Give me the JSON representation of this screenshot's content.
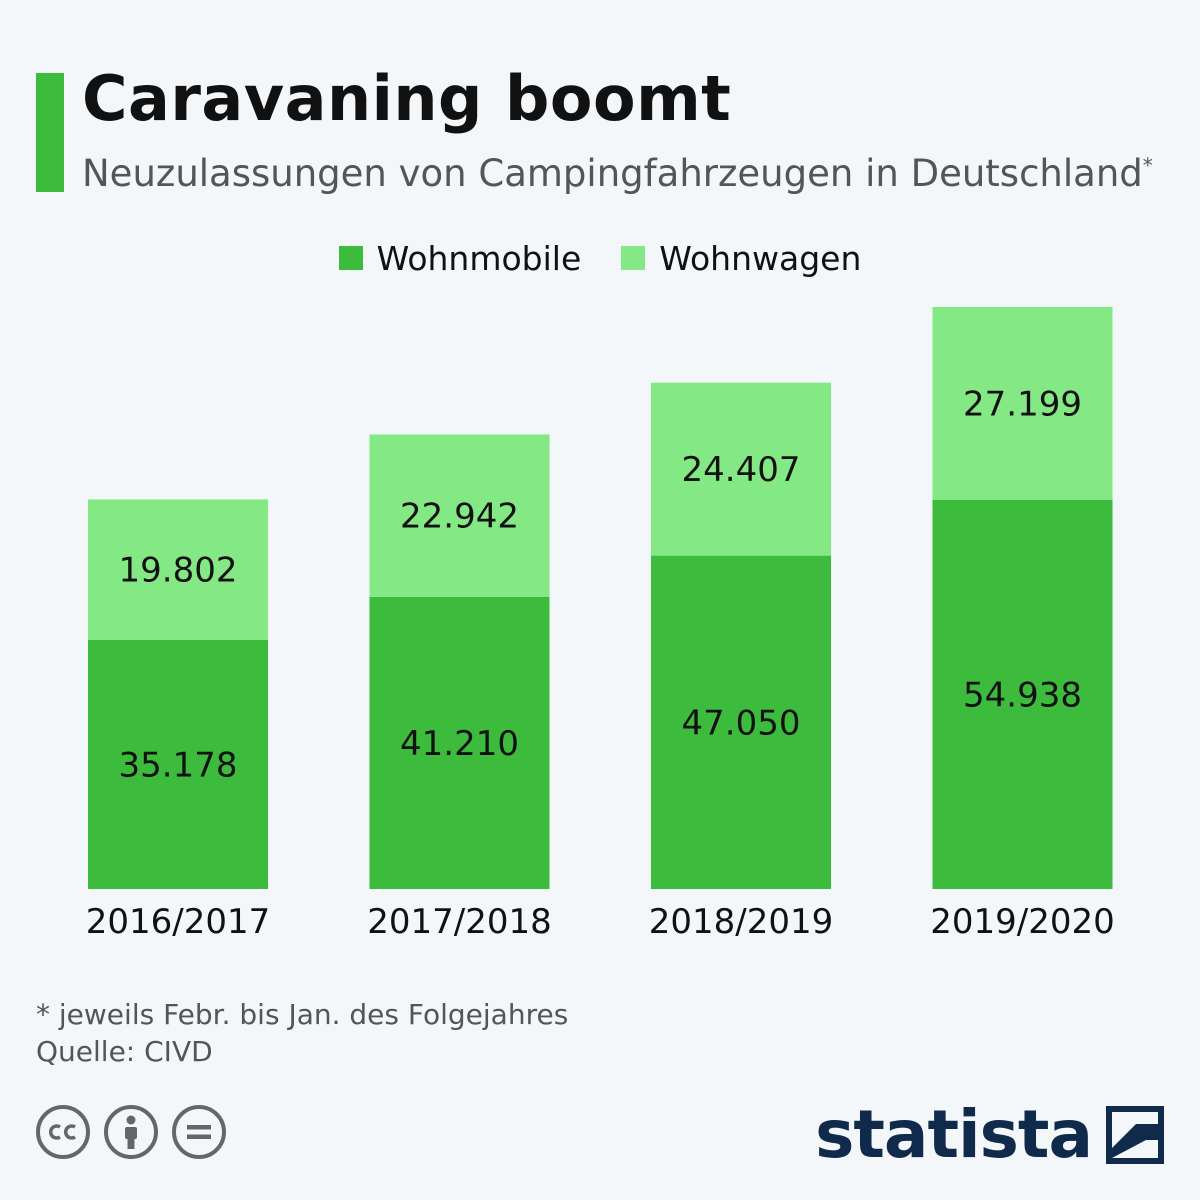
{
  "header": {
    "title": "Caravaning boomt",
    "subtitle": "Neuzulassungen von Campingfahrzeugen in Deutschland",
    "subtitle_marker": "*"
  },
  "colors": {
    "accent": "#3dbb3d",
    "wohnmobile": "#3dbb3d",
    "wohnwagen": "#84e884",
    "logo": "#0f2a4a"
  },
  "chart_data": {
    "type": "bar",
    "stacked": true,
    "categories": [
      "2016/2017",
      "2017/2018",
      "2018/2019",
      "2019/2020"
    ],
    "series": [
      {
        "name": "Wohnmobile",
        "values": [
          35178,
          41210,
          47050,
          54938
        ],
        "labels": [
          "35.178",
          "41.210",
          "47.050",
          "54.938"
        ]
      },
      {
        "name": "Wohnwagen",
        "values": [
          19802,
          22942,
          24407,
          27199
        ],
        "labels": [
          "19.802",
          "22.942",
          "24.407",
          "27.199"
        ]
      }
    ],
    "ylim": [
      0,
      82137
    ],
    "grid": false,
    "legend": "top-center"
  },
  "footer": {
    "note": "* jeweils Febr. bis Jan. des Folgejahres",
    "source": "Quelle: CIVD"
  },
  "icons": {
    "cc": "cc-icon",
    "by": "person-icon",
    "nd": "equals-icon",
    "logo": "statista-logo"
  },
  "brand": {
    "name": "statista"
  }
}
